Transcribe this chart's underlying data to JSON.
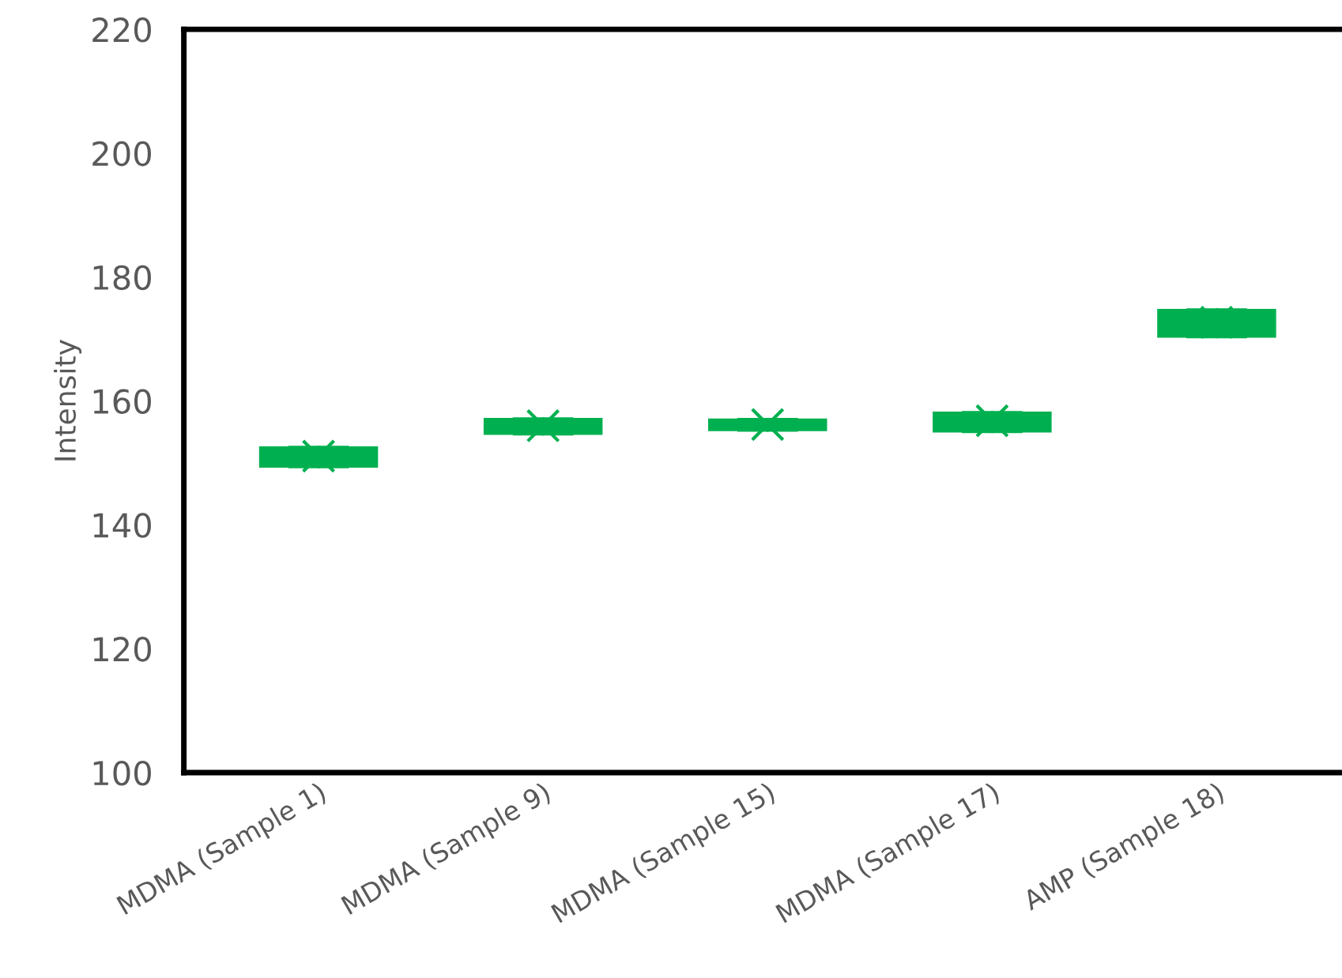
{
  "chart_data": {
    "type": "box",
    "ylabel": "Intensity",
    "categories": [
      "MDMA (Sample 1)",
      "MDMA (Sample 9)",
      "MDMA (Sample 15)",
      "MDMA (Sample 17)",
      "AMP (Sample 18)"
    ],
    "series": [
      {
        "color": "#00b050",
        "boxes": [
          {
            "low": 149.3,
            "q1": 149.4,
            "median": 151,
            "q3": 152.5,
            "high": 152.6,
            "mean": 151.1
          },
          {
            "low": 154.6,
            "q1": 154.7,
            "median": 156,
            "q3": 157.1,
            "high": 157.2,
            "mean": 156
          },
          {
            "low": 155.2,
            "q1": 155.3,
            "median": 156.2,
            "q3": 157,
            "high": 157.1,
            "mean": 156.2
          },
          {
            "low": 155,
            "q1": 155.1,
            "median": 156.8,
            "q3": 158.1,
            "high": 158.2,
            "mean": 156.8
          },
          {
            "low": 170.3,
            "q1": 170.4,
            "median": 172.7,
            "q3": 174.7,
            "high": 174.8,
            "mean": 172.7
          }
        ]
      }
    ],
    "ylim": [
      100,
      220
    ],
    "yticks": [
      100,
      120,
      140,
      160,
      180,
      200,
      220
    ],
    "grid": false,
    "legend": false,
    "marker": "cross"
  }
}
